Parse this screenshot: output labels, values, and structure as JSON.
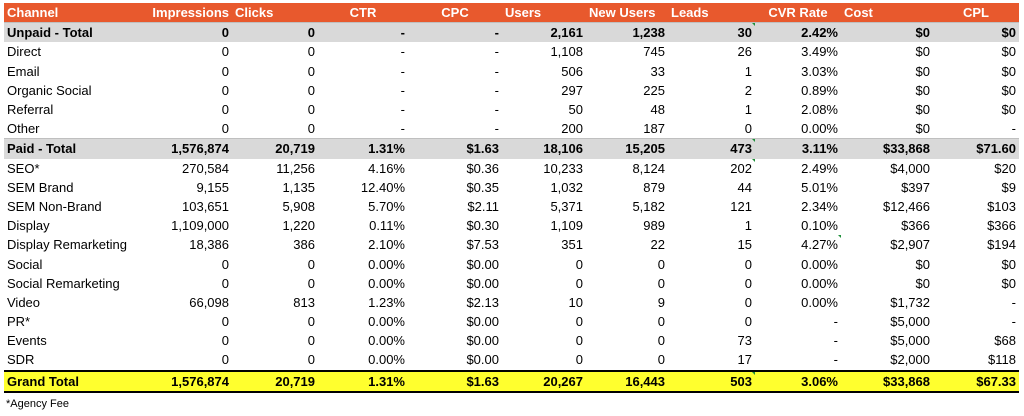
{
  "headers": [
    "Channel",
    "Impressions",
    "Clicks",
    "CTR",
    "CPC",
    "Users",
    "New Users",
    "Leads",
    "CVR Rate",
    "Cost",
    "CPL"
  ],
  "rows": [
    {
      "type": "total",
      "cells": [
        "Unpaid - Total",
        "0",
        "0",
        "-",
        "-",
        "2,161",
        "1,238",
        "30",
        "2.42%",
        "$0",
        "$0"
      ],
      "flag": true
    },
    {
      "type": "row",
      "cells": [
        "Direct",
        "0",
        "0",
        "-",
        "-",
        "1,108",
        "745",
        "26",
        "3.49%",
        "$0",
        "$0"
      ]
    },
    {
      "type": "row",
      "cells": [
        "Email",
        "0",
        "0",
        "-",
        "-",
        "506",
        "33",
        "1",
        "3.03%",
        "$0",
        "$0"
      ]
    },
    {
      "type": "row",
      "cells": [
        "Organic Social",
        "0",
        "0",
        "-",
        "-",
        "297",
        "225",
        "2",
        "0.89%",
        "$0",
        "$0"
      ]
    },
    {
      "type": "row",
      "cells": [
        "Referral",
        "0",
        "0",
        "-",
        "-",
        "50",
        "48",
        "1",
        "2.08%",
        "$0",
        "$0"
      ]
    },
    {
      "type": "row",
      "cells": [
        "Other",
        "0",
        "0",
        "-",
        "-",
        "200",
        "187",
        "0",
        "0.00%",
        "$0",
        "-"
      ]
    },
    {
      "type": "total",
      "cells": [
        "Paid - Total",
        "1,576,874",
        "20,719",
        "1.31%",
        "$1.63",
        "18,106",
        "15,205",
        "473",
        "3.11%",
        "$33,868",
        "$71.60"
      ],
      "flag": true
    },
    {
      "type": "row",
      "cells": [
        "SEO*",
        "270,584",
        "11,256",
        "4.16%",
        "$0.36",
        "10,233",
        "8,124",
        "202",
        "2.49%",
        "$4,000",
        "$20"
      ],
      "flag": true
    },
    {
      "type": "row",
      "cells": [
        "SEM Brand",
        "9,155",
        "1,135",
        "12.40%",
        "$0.35",
        "1,032",
        "879",
        "44",
        "5.01%",
        "$397",
        "$9"
      ]
    },
    {
      "type": "row",
      "cells": [
        "SEM Non-Brand",
        "103,651",
        "5,908",
        "5.70%",
        "$2.11",
        "5,371",
        "5,182",
        "121",
        "2.34%",
        "$12,466",
        "$103"
      ]
    },
    {
      "type": "row",
      "cells": [
        "Display",
        "1,109,000",
        "1,220",
        "0.11%",
        "$0.30",
        "1,109",
        "989",
        "1",
        "0.10%",
        "$366",
        "$366"
      ]
    },
    {
      "type": "row",
      "cells": [
        "Display Remarketing",
        "18,386",
        "386",
        "2.10%",
        "$7.53",
        "351",
        "22",
        "15",
        "4.27%",
        "$2,907",
        "$194"
      ],
      "flagCvr": true
    },
    {
      "type": "row",
      "cells": [
        "Social",
        "0",
        "0",
        "0.00%",
        "$0.00",
        "0",
        "0",
        "0",
        "0.00%",
        "$0",
        "$0"
      ]
    },
    {
      "type": "row",
      "cells": [
        "Social Remarketing",
        "0",
        "0",
        "0.00%",
        "$0.00",
        "0",
        "0",
        "0",
        "0.00%",
        "$0",
        "$0"
      ]
    },
    {
      "type": "row",
      "cells": [
        "Video",
        "66,098",
        "813",
        "1.23%",
        "$2.13",
        "10",
        "9",
        "0",
        "0.00%",
        "$1,732",
        "-"
      ]
    },
    {
      "type": "row",
      "cells": [
        "PR*",
        "0",
        "0",
        "0.00%",
        "$0.00",
        "0",
        "0",
        "0",
        "-",
        "$5,000",
        "-"
      ]
    },
    {
      "type": "row",
      "cells": [
        "Events",
        "0",
        "0",
        "0.00%",
        "$0.00",
        "0",
        "0",
        "73",
        "-",
        "$5,000",
        "$68"
      ]
    },
    {
      "type": "row",
      "cells": [
        "SDR",
        "0",
        "0",
        "0.00%",
        "$0.00",
        "0",
        "0",
        "17",
        "-",
        "$2,000",
        "$118"
      ]
    },
    {
      "type": "grand",
      "cells": [
        "Grand Total",
        "1,576,874",
        "20,719",
        "1.31%",
        "$1.63",
        "20,267",
        "16,443",
        "503",
        "3.06%",
        "$33,868",
        "$67.33"
      ],
      "flag": true
    }
  ],
  "footnote": "*Agency Fee",
  "colors": {
    "header": "#e8592d",
    "total": "#d9d9d9",
    "grand": "#ffff2e",
    "flag": "#1f8f3a"
  }
}
